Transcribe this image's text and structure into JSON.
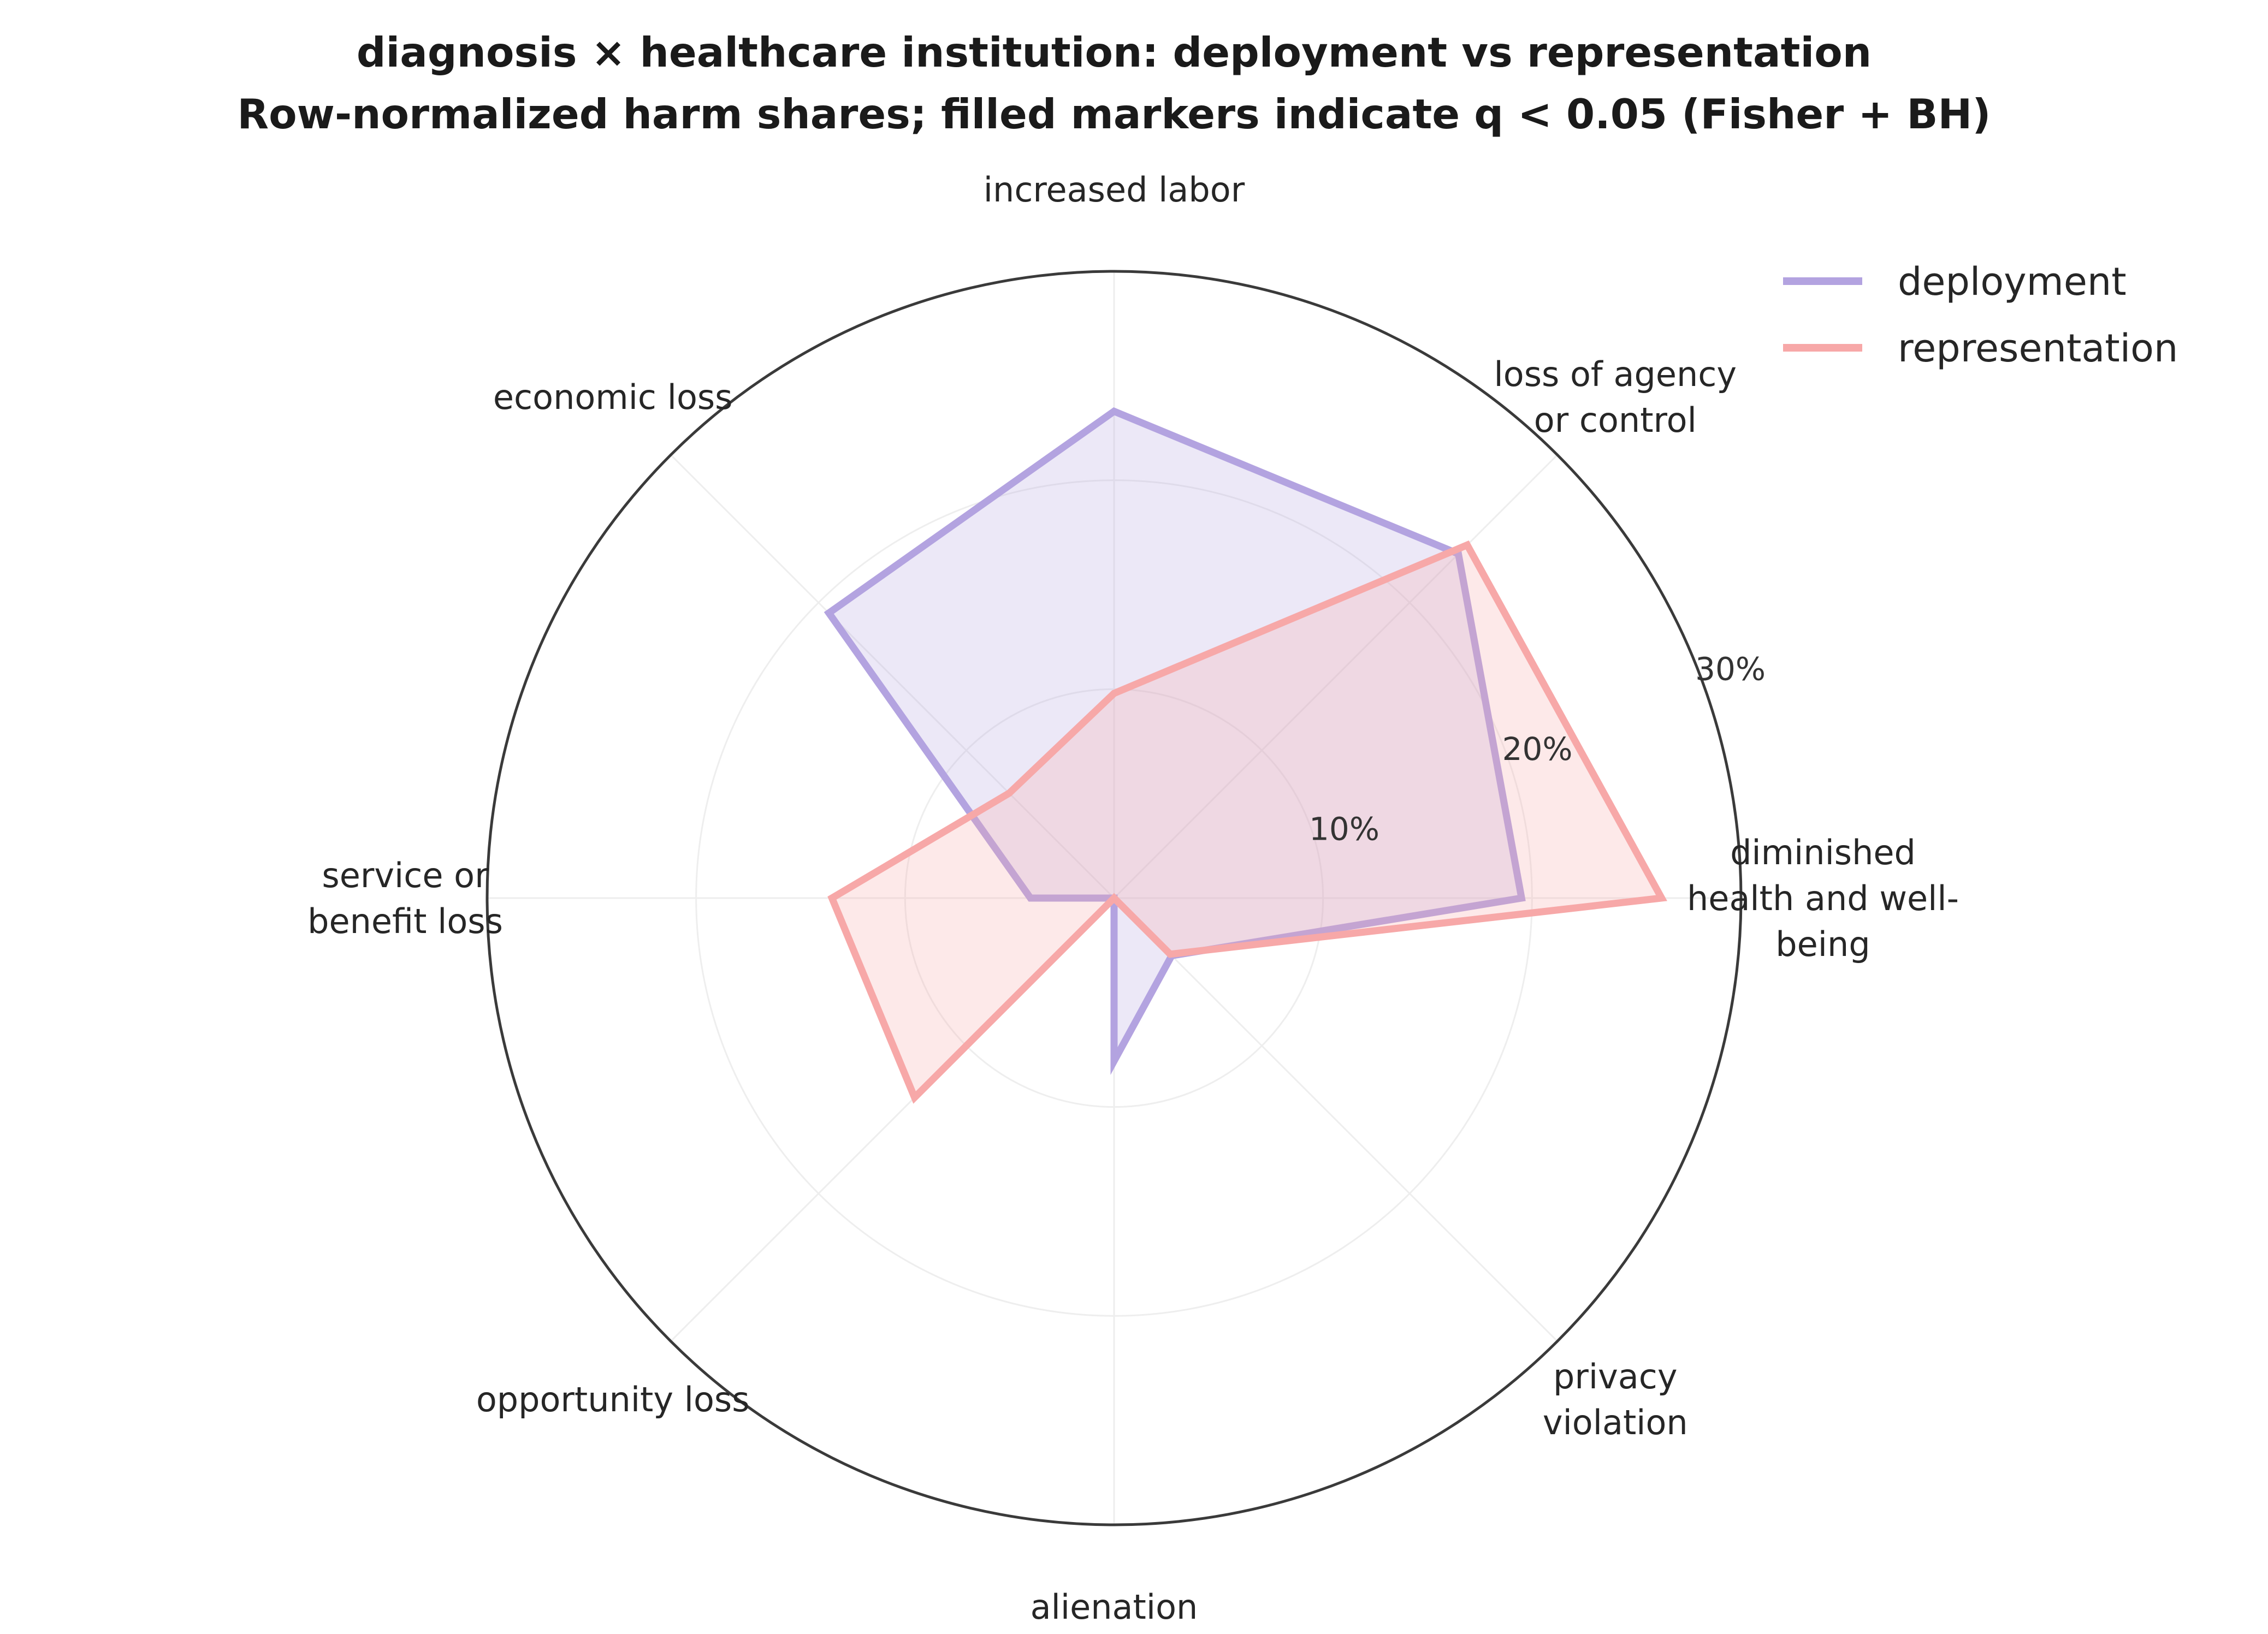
{
  "chart_data": {
    "type": "radar",
    "title": "diagnosis × healthcare institution: deployment vs representation",
    "subtitle": "Row-normalized harm shares; filled markers indicate q < 0.05 (Fisher + BH)",
    "categories": [
      [
        "diminished",
        "health and well-",
        "being"
      ],
      [
        "loss of agency",
        "or control"
      ],
      [
        "increased labor"
      ],
      [
        "economic loss"
      ],
      [
        "service or",
        "benefit loss"
      ],
      [
        "opportunity loss"
      ],
      [
        "alienation"
      ],
      [
        "privacy",
        "violation"
      ]
    ],
    "rlim": [
      0,
      30
    ],
    "rticks": [
      10,
      20,
      30
    ],
    "rtick_labels": [
      "10%",
      "20%",
      "30%"
    ],
    "grid": true,
    "legend_position": "top-right",
    "series": [
      {
        "name": "deployment",
        "color": "#b3a3e0",
        "values": [
          19.5,
          23.3,
          23.3,
          19.3,
          4.0,
          0.0,
          7.8,
          3.9
        ]
      },
      {
        "name": "representation",
        "color": "#f7a8a8",
        "values": [
          26.2,
          23.9,
          9.8,
          7.1,
          13.5,
          13.5,
          0.0,
          3.8
        ]
      }
    ]
  }
}
